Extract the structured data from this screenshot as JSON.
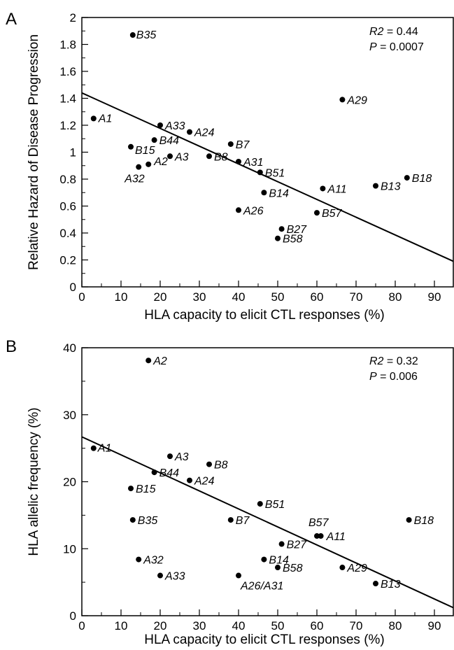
{
  "chart_data": [
    {
      "type": "scatter",
      "panel_label": "A",
      "xlabel": "HLA capacity to elicit CTL responses (%)",
      "ylabel": "Relative Hazard of Disease Progression",
      "xlim": [
        0,
        95
      ],
      "ylim": [
        0,
        2
      ],
      "x_ticks": [
        "0",
        "10",
        "20",
        "30",
        "40",
        "50",
        "60",
        "70",
        "80",
        "90"
      ],
      "y_ticks": [
        "0",
        "0.2",
        "0.4",
        "0.6",
        "0.8",
        "1",
        "1.2",
        "1.4",
        "1.6",
        "1.8",
        "2"
      ],
      "stats": {
        "r2_label": "R2",
        "r2_value": "= 0.44",
        "p_label": "P",
        "p_value": "= 0.0007"
      },
      "fit_line": {
        "x": [
          0,
          95
        ],
        "y": [
          1.44,
          0.19
        ]
      },
      "points": [
        {
          "label": "A1",
          "x": 3,
          "y": 1.25
        },
        {
          "label": "B35",
          "x": 13,
          "y": 1.87
        },
        {
          "label": "A33",
          "x": 20,
          "y": 1.2
        },
        {
          "label": "A24",
          "x": 27.5,
          "y": 1.15
        },
        {
          "label": "B44",
          "x": 18.5,
          "y": 1.09
        },
        {
          "label": "B15",
          "x": 12.5,
          "y": 1.04
        },
        {
          "label": "A3",
          "x": 22.5,
          "y": 0.97
        },
        {
          "label": "A2",
          "x": 17,
          "y": 0.91
        },
        {
          "label": "A32",
          "x": 14.5,
          "y": 0.89
        },
        {
          "label": "B7",
          "x": 38,
          "y": 1.06
        },
        {
          "label": "B8",
          "x": 32.5,
          "y": 0.97
        },
        {
          "label": "A31",
          "x": 40,
          "y": 0.93
        },
        {
          "label": "B51",
          "x": 45.5,
          "y": 0.85
        },
        {
          "label": "B14",
          "x": 46.5,
          "y": 0.7
        },
        {
          "label": "A26",
          "x": 40,
          "y": 0.57
        },
        {
          "label": "B27",
          "x": 51,
          "y": 0.43
        },
        {
          "label": "B58",
          "x": 50,
          "y": 0.36
        },
        {
          "label": "B57",
          "x": 60,
          "y": 0.55
        },
        {
          "label": "A11",
          "x": 61.5,
          "y": 0.73
        },
        {
          "label": "A29",
          "x": 66.5,
          "y": 1.39
        },
        {
          "label": "B13",
          "x": 75,
          "y": 0.75
        },
        {
          "label": "B18",
          "x": 83,
          "y": 0.81
        }
      ]
    },
    {
      "type": "scatter",
      "panel_label": "B",
      "xlabel": "HLA capacity to elicit CTL responses (%)",
      "ylabel": "HLA allelic frequency (%)",
      "xlim": [
        0,
        95
      ],
      "ylim": [
        0,
        40
      ],
      "x_ticks": [
        "0",
        "10",
        "20",
        "30",
        "40",
        "50",
        "60",
        "70",
        "80",
        "90"
      ],
      "y_ticks": [
        "0",
        "10",
        "20",
        "30",
        "40"
      ],
      "stats": {
        "r2_label": "R2",
        "r2_value": "= 0.32",
        "p_label": "P",
        "p_value": "= 0.006"
      },
      "fit_line": {
        "x": [
          0,
          95
        ],
        "y": [
          26.7,
          1.2
        ]
      },
      "points": [
        {
          "label": "A2",
          "x": 17,
          "y": 38.1
        },
        {
          "label": "A1",
          "x": 3,
          "y": 25.0
        },
        {
          "label": "A3",
          "x": 22.5,
          "y": 23.8
        },
        {
          "label": "B8",
          "x": 32.5,
          "y": 22.6
        },
        {
          "label": "B44",
          "x": 18.5,
          "y": 21.4
        },
        {
          "label": "A24",
          "x": 27.5,
          "y": 20.2
        },
        {
          "label": "B15",
          "x": 12.5,
          "y": 19.0
        },
        {
          "label": "B51",
          "x": 45.5,
          "y": 16.7
        },
        {
          "label": "B35",
          "x": 13,
          "y": 14.3
        },
        {
          "label": "B7",
          "x": 38,
          "y": 14.3
        },
        {
          "label": "B18",
          "x": 83.5,
          "y": 14.3
        },
        {
          "label": "B57",
          "x": 60,
          "y": 11.9
        },
        {
          "label": "A11",
          "x": 61,
          "y": 11.9
        },
        {
          "label": "B27",
          "x": 51,
          "y": 10.7
        },
        {
          "label": "B14",
          "x": 46.5,
          "y": 8.4
        },
        {
          "label": "A32",
          "x": 14.5,
          "y": 8.4
        },
        {
          "label": "B58",
          "x": 50,
          "y": 7.2
        },
        {
          "label": "A29",
          "x": 66.5,
          "y": 7.2
        },
        {
          "label": "A33",
          "x": 20,
          "y": 6.0
        },
        {
          "label": "A26/A31",
          "x": 40,
          "y": 6.0
        },
        {
          "label": "B13",
          "x": 75,
          "y": 4.8
        }
      ]
    }
  ]
}
